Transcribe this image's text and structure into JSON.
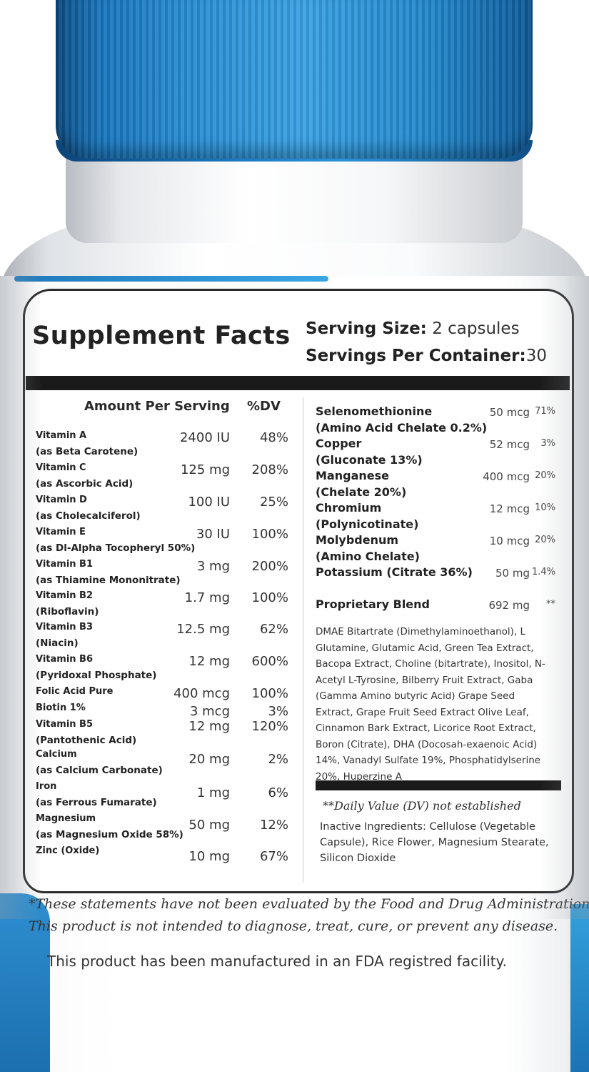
{
  "panel": {
    "title": "Supplement Facts",
    "serving_size_label": "Serving Size:",
    "serving_size_value": "2 capsules",
    "servings_per_label": "Servings Per Container:",
    "servings_per_value": "30",
    "amount_header": "Amount Per Serving",
    "dv_header": "%DV"
  },
  "vitamins": [
    {
      "name": "Vitamin A",
      "sub": "(as Beta Carotene)",
      "amount": "2400 IU",
      "dv": "48%"
    },
    {
      "name": "Vitamin C",
      "sub": "(as Ascorbic Acid)",
      "amount": "125 mg",
      "dv": "208%"
    },
    {
      "name": "Vitamin D",
      "sub": "(as Cholecalciferol)",
      "amount": "100 IU",
      "dv": "25%"
    },
    {
      "name": "Vitamin E",
      "sub": "(as Dl-Alpha Tocopheryl 50%)",
      "amount": "30 IU",
      "dv": "100%"
    },
    {
      "name": "Vitamin B1",
      "sub": "(as Thiamine Mononitrate)",
      "amount": "3 mg",
      "dv": "200%"
    },
    {
      "name": "Vitamin B2",
      "sub": "(Riboflavin)",
      "amount": "1.7 mg",
      "dv": "100%"
    },
    {
      "name": "Vitamin B3",
      "sub": "(Niacin)",
      "amount": "12.5 mg",
      "dv": "62%"
    },
    {
      "name": "Vitamin B6",
      "sub": "(Pyridoxal Phosphate)",
      "amount": "12 mg",
      "dv": "600%"
    },
    {
      "name": "Folic Acid Pure",
      "sub": "",
      "amount": "400 mcg",
      "dv": "100%"
    },
    {
      "name": "Biotin 1%",
      "sub": "",
      "amount": "3 mcg",
      "dv": "3%"
    },
    {
      "name": "Vitamin B5",
      "sub": "(Pantothenic Acid)",
      "amount": "12 mg",
      "dv": "120%"
    },
    {
      "name": "Calcium",
      "sub": "(as Calcium Carbonate)",
      "amount": "20 mg",
      "dv": "2%"
    },
    {
      "name": "Iron",
      "sub": "(as Ferrous Fumarate)",
      "amount": "1 mg",
      "dv": "6%"
    },
    {
      "name": "Magnesium",
      "sub": "(as Magnesium Oxide 58%)",
      "amount": "50 mg",
      "dv": "12%"
    },
    {
      "name": "Zinc (Oxide)",
      "sub": "",
      "amount": "10 mg",
      "dv": "67%"
    }
  ],
  "minerals": [
    {
      "name": "Selenomethionine",
      "sub": "(Amino Acid Chelate 0.2%)",
      "amount": "50 mcg",
      "dv": "71%"
    },
    {
      "name": "Copper",
      "sub": "(Gluconate 13%)",
      "amount": "52 mcg",
      "dv": "3%"
    },
    {
      "name": "Manganese",
      "sub": "(Chelate 20%)",
      "amount": "400 mcg",
      "dv": "20%"
    },
    {
      "name": "Chromium",
      "sub": "(Polynicotinate)",
      "amount": "12 mcg",
      "dv": "10%"
    },
    {
      "name": "Molybdenum",
      "sub": "(Amino Chelate)",
      "amount": "10 mcg",
      "dv": "20%"
    },
    {
      "name": "Potassium (Citrate 36%)",
      "sub": "",
      "amount": "50 mg",
      "dv": "1.4%"
    }
  ],
  "blend": {
    "name": "Proprietary Blend",
    "amount": "692 mg",
    "dv": "**",
    "ingredients": "DMAE Bitartrate (Dimethylaminoethanol), L Glutamine, Glutamic Acid, Green Tea Extract, Bacopa Extract, Choline (bitartrate), Inositol, N-Acetyl L-Tyrosine, Bilberry Fruit Extract, Gaba (Gamma Amino butyric Acid) Grape Seed Extract, Grape Fruit Seed Extract Olive Leaf, Cinnamon Bark Extract, Licorice Root Extract, Boron (Citrate), DHA (Docosah-exaenoic Acid) 14%, Vanadyl Sulfate 19%, Phosphatidylserine 20%, Huperzine A"
  },
  "notes": {
    "dv_note": "**Daily Value (DV) not established",
    "inactive": "Inactive Ingredients: Cellulose (Vegetable Capsule), Rice Flower, Magnesium Stearate, Silicon Dioxide",
    "fda_line1": "*These statements have not been evaluated by the Food and Drug Administration.",
    "fda_line2": "This product is not intended to diagnose, treat, cure, or prevent any disease.",
    "facility": "This product has been manufactured in an FDA registred facility."
  },
  "colors": {
    "cap": "#2a90d6",
    "stripe": "#2e8fd1",
    "panel_border": "#2b2b2b"
  }
}
